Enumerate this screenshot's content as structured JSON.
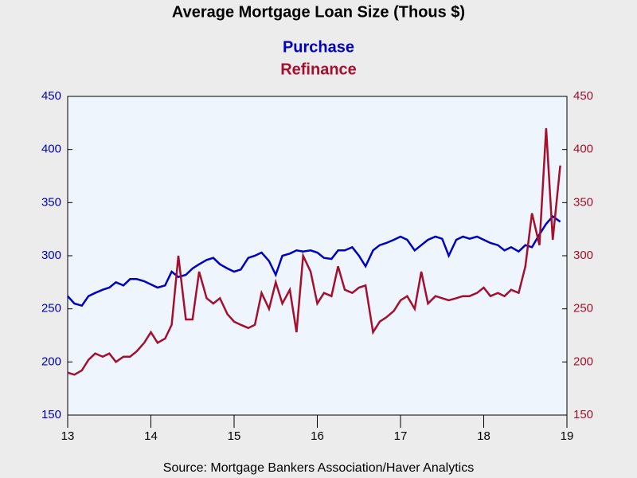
{
  "chart_data": {
    "type": "line",
    "title": "Average Mortgage Loan Size (Thous $)",
    "source": "Source:  Mortgage Bankers Association/Haver Analytics",
    "x": [
      13.0,
      13.08,
      13.17,
      13.25,
      13.33,
      13.42,
      13.5,
      13.58,
      13.67,
      13.75,
      13.83,
      13.92,
      14.0,
      14.08,
      14.17,
      14.25,
      14.33,
      14.42,
      14.5,
      14.58,
      14.67,
      14.75,
      14.83,
      14.92,
      15.0,
      15.08,
      15.17,
      15.25,
      15.33,
      15.42,
      15.5,
      15.58,
      15.67,
      15.75,
      15.83,
      15.92,
      16.0,
      16.08,
      16.17,
      16.25,
      16.33,
      16.42,
      16.5,
      16.58,
      16.67,
      16.75,
      16.83,
      16.92,
      17.0,
      17.08,
      17.17,
      17.25,
      17.33,
      17.42,
      17.5,
      17.58,
      17.67,
      17.75,
      17.83,
      17.92,
      18.0,
      18.08,
      18.17,
      18.25,
      18.33,
      18.42,
      18.5,
      18.58,
      18.67,
      18.75,
      18.83,
      18.92
    ],
    "series": [
      {
        "name": "Purchase",
        "color": "#0000c0",
        "values": [
          262,
          255,
          253,
          262,
          265,
          268,
          270,
          275,
          272,
          278,
          278,
          276,
          273,
          270,
          272,
          285,
          280,
          282,
          288,
          292,
          296,
          298,
          292,
          288,
          285,
          287,
          298,
          300,
          303,
          295,
          282,
          300,
          302,
          305,
          304,
          305,
          303,
          298,
          297,
          305,
          305,
          308,
          300,
          290,
          305,
          310,
          312,
          315,
          318,
          315,
          305,
          310,
          315,
          318,
          316,
          300,
          315,
          318,
          316,
          318,
          315,
          312,
          310,
          305,
          308,
          304,
          310,
          308,
          320,
          330,
          337,
          332
        ]
      },
      {
        "name": "Refinance",
        "color": "#a50f2d",
        "axis": "y2",
        "values": [
          190,
          188,
          192,
          202,
          208,
          205,
          208,
          200,
          205,
          205,
          210,
          218,
          228,
          218,
          222,
          235,
          300,
          240,
          240,
          285,
          260,
          255,
          260,
          245,
          238,
          235,
          232,
          235,
          265,
          250,
          275,
          255,
          268,
          228,
          300,
          285,
          255,
          265,
          262,
          290,
          268,
          265,
          270,
          272,
          228,
          238,
          242,
          248,
          258,
          262,
          250,
          285,
          255,
          262,
          260,
          258,
          260,
          262,
          262,
          265,
          270,
          262,
          265,
          262,
          268,
          265,
          290,
          340,
          310,
          420,
          315,
          385
        ]
      }
    ],
    "xlim": [
      13,
      19
    ],
    "xticks": [
      13,
      14,
      15,
      16,
      17,
      18,
      19
    ],
    "ylim": [
      150,
      450
    ],
    "yticks": [
      150,
      200,
      250,
      300,
      350,
      400,
      450
    ],
    "y2lim": [
      150,
      450
    ],
    "y2ticks": [
      150,
      200,
      250,
      300,
      350,
      400,
      450
    ]
  }
}
